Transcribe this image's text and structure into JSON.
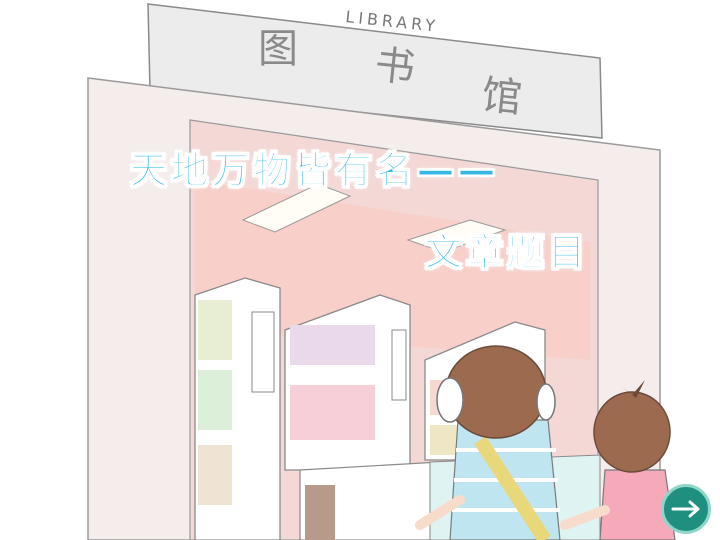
{
  "sign": {
    "english": "LIBRARY",
    "chinese_chars": [
      "图",
      "书",
      "馆"
    ]
  },
  "title": {
    "line1": "天地万物皆有名——",
    "line2": "文章题目"
  },
  "next_button": {
    "icon": "arrow-right-icon",
    "color": "#1f8f80"
  }
}
